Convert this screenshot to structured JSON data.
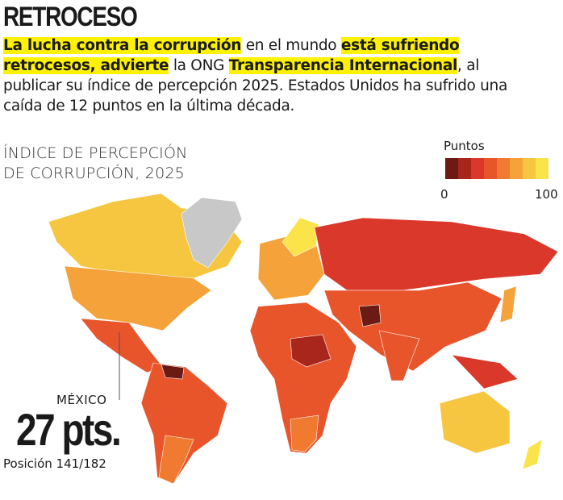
{
  "header": {
    "title": "RETROCESO",
    "intro": [
      {
        "text": "La lucha contra la corrupción",
        "highlight": true
      },
      {
        "text": " en el mundo ",
        "highlight": false
      },
      {
        "text": "está sufriendo retrocesos, advierte",
        "highlight": true
      },
      {
        "text": " la ONG ",
        "highlight": false
      },
      {
        "text": "Transparencia Internacional",
        "highlight": true
      },
      {
        "text": ", al publicar su índice de percepción 2025. Estados Unidos ha sufrido una caída de 12 puntos en la última década.",
        "highlight": false
      }
    ]
  },
  "map": {
    "title_lines": [
      "ÍNDICE DE PERCEPCIÓN",
      "DE CORRUPCIÓN, 2025"
    ],
    "legend": {
      "title": "Puntos",
      "min_label": "0",
      "max_label": "100",
      "colors": [
        "#6b1a14",
        "#a8261c",
        "#d9382a",
        "#e8552b",
        "#f07a30",
        "#f5a23a",
        "#f7c640",
        "#fbe34a"
      ]
    },
    "callout": {
      "country": "MÉXICO",
      "score": "27 pts.",
      "rank": "Posición 141/182"
    }
  }
}
